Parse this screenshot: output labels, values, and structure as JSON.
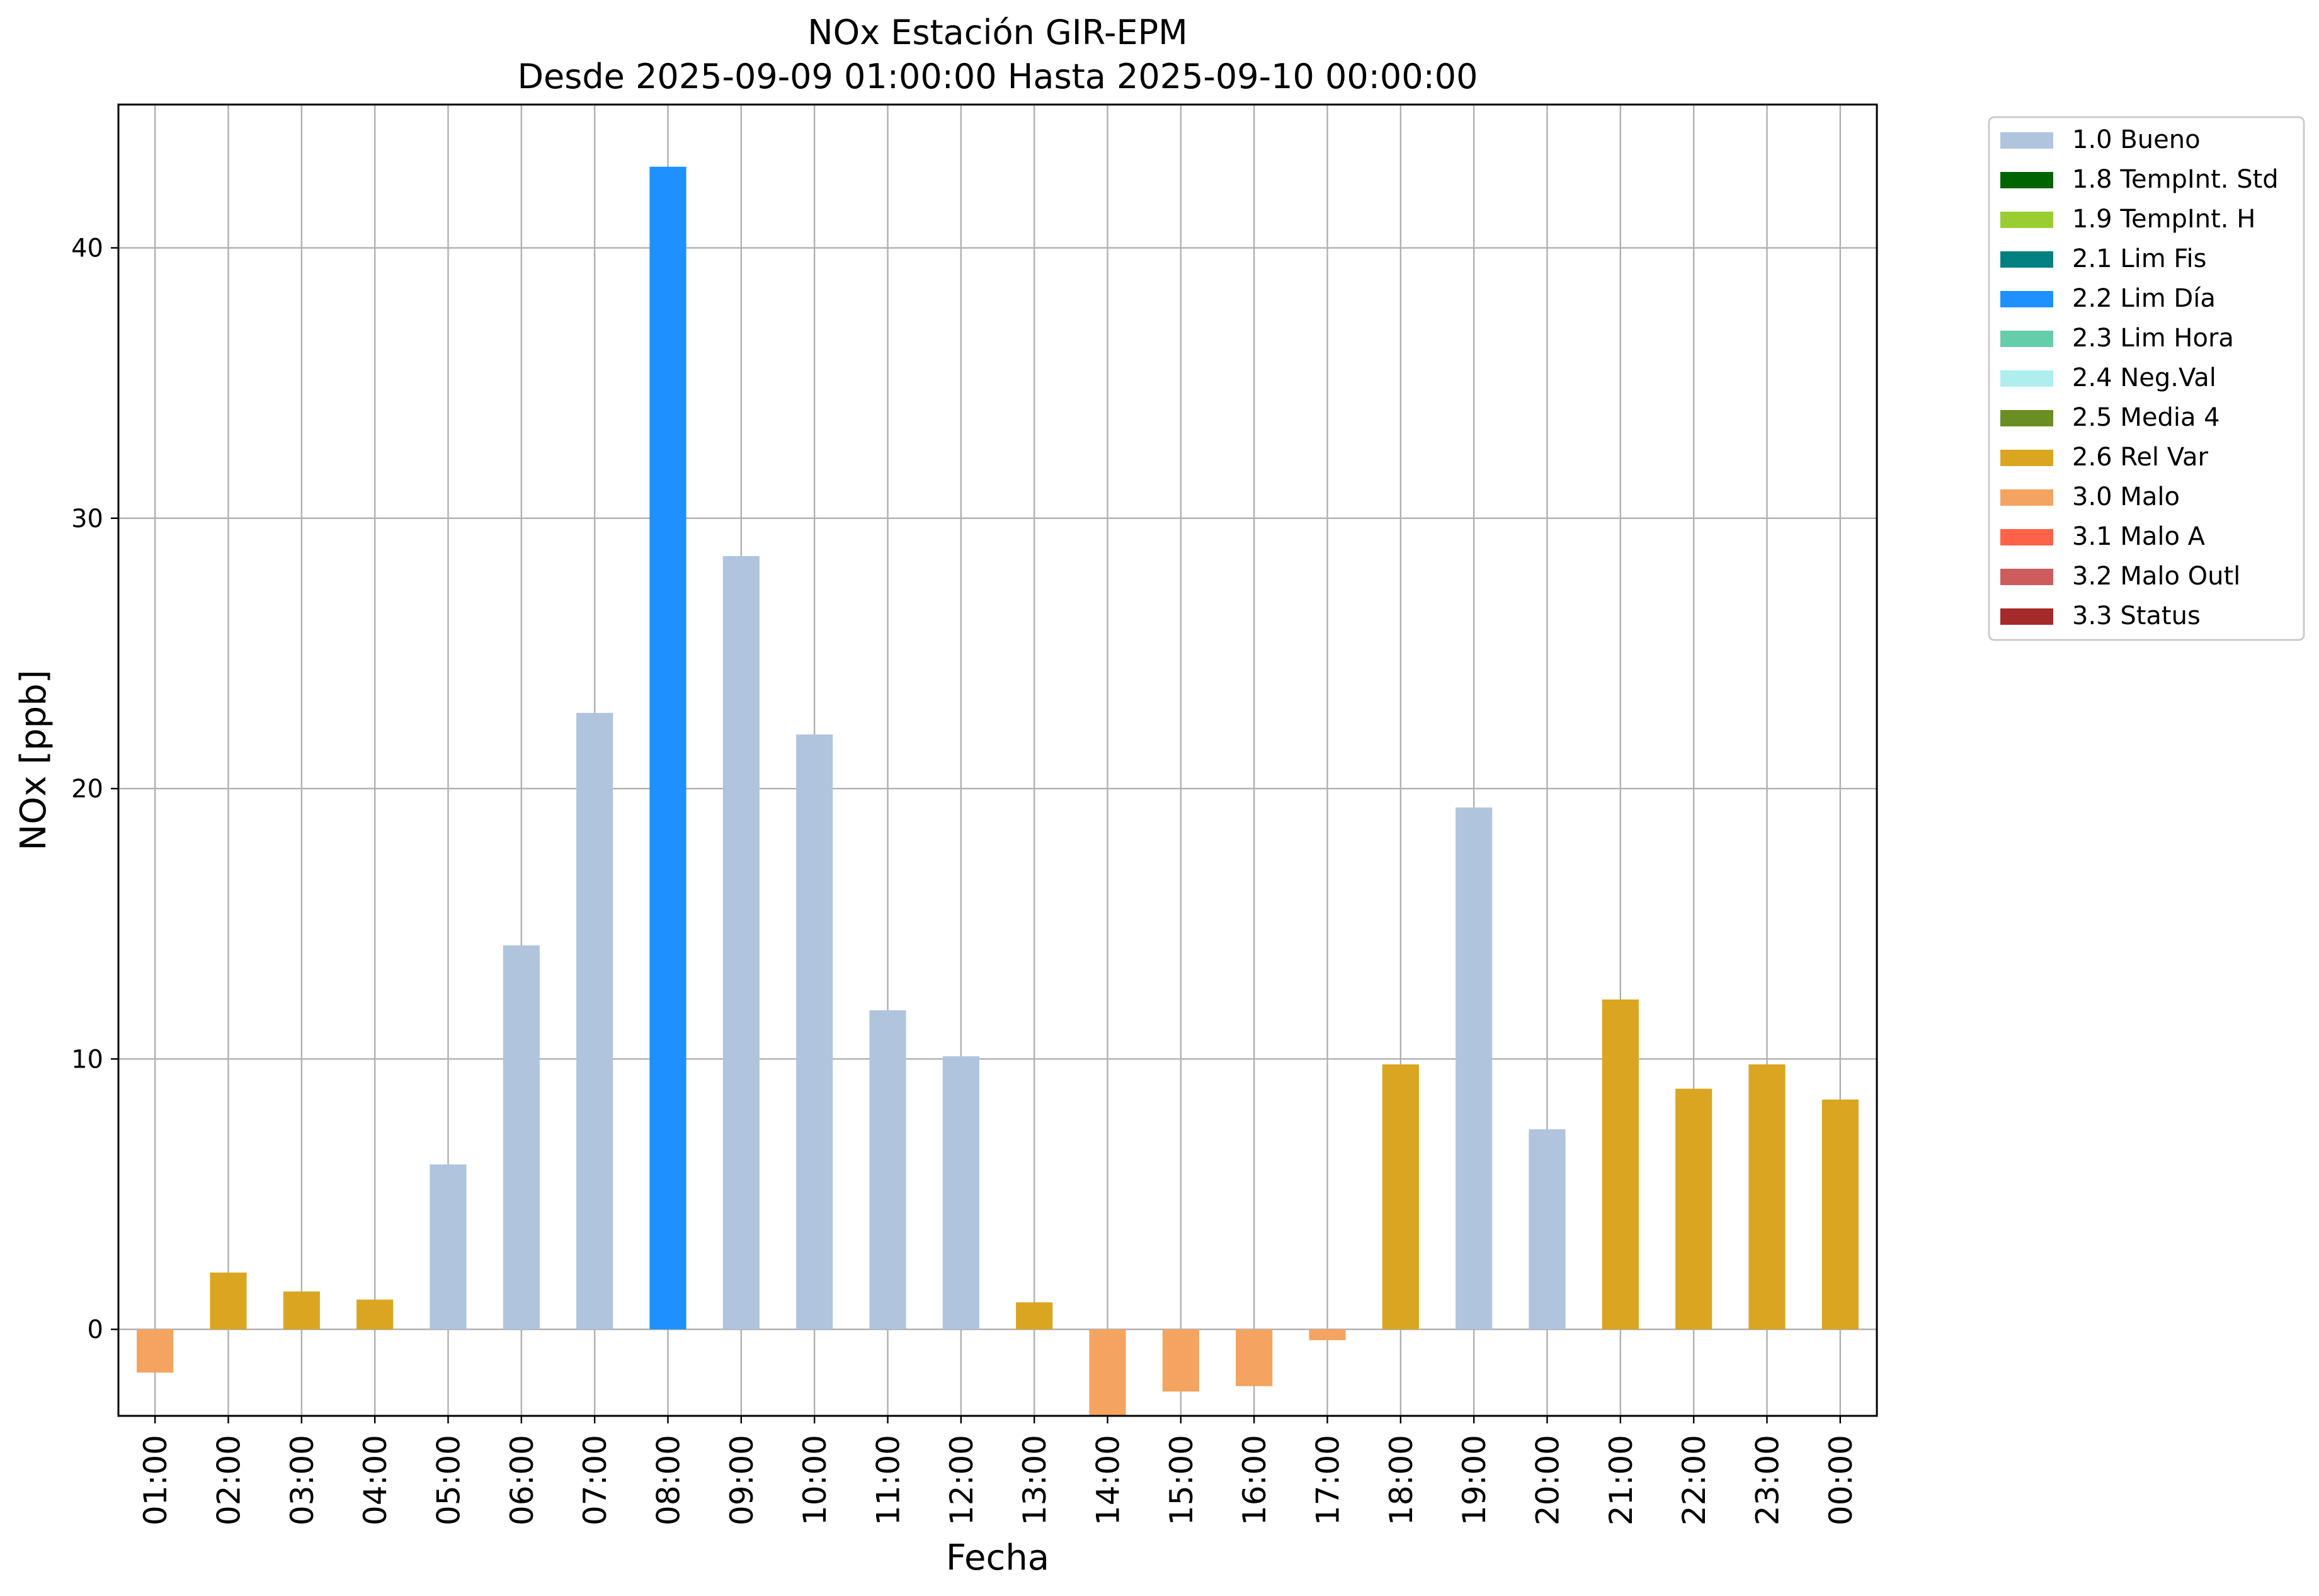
{
  "chart_data": {
    "type": "bar",
    "title": "NOx Estación GIR-EPM",
    "subtitle": "Desde 2025-09-09 01:00:00 Hasta 2025-09-10 00:00:00",
    "xlabel": "Fecha",
    "ylabel": "NOx [ppb]",
    "ylim": [
      -3.2,
      45.3
    ],
    "yticks": [
      0,
      10,
      20,
      30,
      40
    ],
    "grid": true,
    "legend_position": "outside right, top",
    "categories": [
      "01:00",
      "02:00",
      "03:00",
      "04:00",
      "05:00",
      "06:00",
      "07:00",
      "08:00",
      "09:00",
      "10:00",
      "11:00",
      "12:00",
      "13:00",
      "14:00",
      "15:00",
      "16:00",
      "17:00",
      "18:00",
      "19:00",
      "20:00",
      "21:00",
      "22:00",
      "23:00",
      "00:00"
    ],
    "values": [
      -1.6,
      2.1,
      1.4,
      1.1,
      6.1,
      14.2,
      22.8,
      43.0,
      28.6,
      22.0,
      11.8,
      10.1,
      1.0,
      -3.2,
      -2.3,
      -2.1,
      -0.4,
      9.8,
      19.3,
      7.4,
      12.2,
      8.9,
      9.8,
      8.5
    ],
    "flags": [
      "3.0 Malo",
      "2.6 Rel Var",
      "2.6 Rel Var",
      "2.6 Rel Var",
      "1.0 Bueno",
      "1.0 Bueno",
      "1.0 Bueno",
      "2.2 Lim Día",
      "1.0 Bueno",
      "1.0 Bueno",
      "1.0 Bueno",
      "1.0 Bueno",
      "2.6 Rel Var",
      "3.0 Malo",
      "3.0 Malo",
      "3.0 Malo",
      "3.0 Malo",
      "2.6 Rel Var",
      "1.0 Bueno",
      "1.0 Bueno",
      "2.6 Rel Var",
      "2.6 Rel Var",
      "2.6 Rel Var",
      "2.6 Rel Var"
    ],
    "legend": [
      {
        "label": "1.0 Bueno",
        "color": "#b0c4de"
      },
      {
        "label": "1.8 TempInt. Std",
        "color": "#006400"
      },
      {
        "label": "1.9 TempInt. H",
        "color": "#9acd32"
      },
      {
        "label": "2.1 Lim Fis",
        "color": "#008080"
      },
      {
        "label": "2.2 Lim Día",
        "color": "#1e90ff"
      },
      {
        "label": "2.3 Lim Hora",
        "color": "#66cdaa"
      },
      {
        "label": "2.4 Neg.Val",
        "color": "#afeeee"
      },
      {
        "label": "2.5 Media 4",
        "color": "#6b8e23"
      },
      {
        "label": "2.6 Rel Var",
        "color": "#daa520"
      },
      {
        "label": "3.0 Malo",
        "color": "#f4a460"
      },
      {
        "label": "3.1 Malo A",
        "color": "#ff6347"
      },
      {
        "label": "3.2 Malo Outl",
        "color": "#cd5c5c"
      },
      {
        "label": "3.3 Status",
        "color": "#a52a2a"
      }
    ]
  }
}
